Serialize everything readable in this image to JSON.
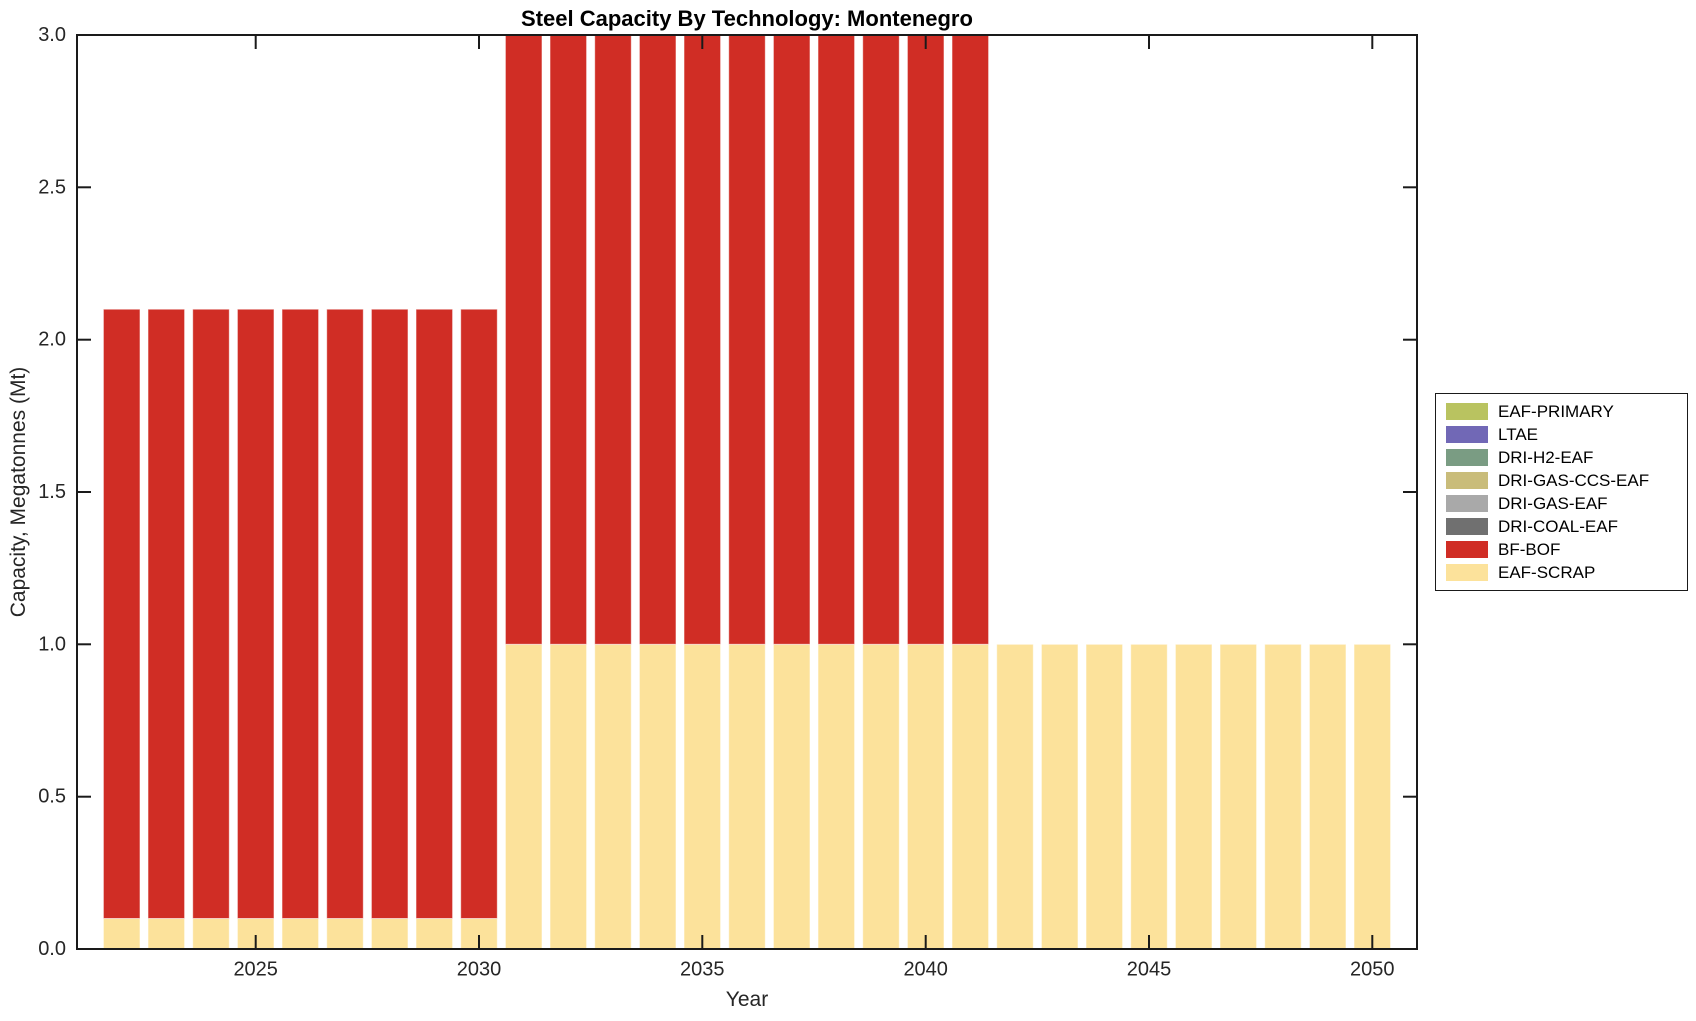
{
  "chart_data": {
    "type": "bar",
    "stacked": true,
    "title": "Steel Capacity By Technology: Montenegro",
    "xlabel": "Year",
    "ylabel": "Capacity, Megatonnes (Mt)",
    "x_range": [
      2021,
      2051
    ],
    "ylim": [
      0.0,
      3.0
    ],
    "x_ticks": [
      2025,
      2030,
      2035,
      2040,
      2045,
      2050
    ],
    "y_ticks": [
      0.0,
      0.5,
      1.0,
      1.5,
      2.0,
      2.5,
      3.0
    ],
    "grid": false,
    "legend_position": "outside-right",
    "bar_width_fraction": 0.82,
    "categories": [
      2022,
      2023,
      2024,
      2025,
      2026,
      2027,
      2028,
      2029,
      2030,
      2031,
      2032,
      2033,
      2034,
      2035,
      2036,
      2037,
      2038,
      2039,
      2040,
      2041,
      2042,
      2043,
      2044,
      2045,
      2046,
      2047,
      2048,
      2049,
      2050
    ],
    "series": [
      {
        "name": "EAF-SCRAP",
        "color": "#fce29b",
        "values": [
          0.1,
          0.1,
          0.1,
          0.1,
          0.1,
          0.1,
          0.1,
          0.1,
          0.1,
          1.0,
          1.0,
          1.0,
          1.0,
          1.0,
          1.0,
          1.0,
          1.0,
          1.0,
          1.0,
          1.0,
          1.0,
          1.0,
          1.0,
          1.0,
          1.0,
          1.0,
          1.0,
          1.0,
          1.0
        ]
      },
      {
        "name": "BF-BOF",
        "color": "#d02d25",
        "values": [
          2.0,
          2.0,
          2.0,
          2.0,
          2.0,
          2.0,
          2.0,
          2.0,
          2.0,
          2.0,
          2.0,
          2.0,
          2.0,
          2.0,
          2.0,
          2.0,
          2.0,
          2.0,
          2.0,
          2.0,
          0.0,
          0.0,
          0.0,
          0.0,
          0.0,
          0.0,
          0.0,
          0.0,
          0.0
        ]
      }
    ],
    "legend": [
      {
        "label": "EAF-PRIMARY",
        "color": "#b9c360"
      },
      {
        "label": "LTAE",
        "color": "#7168b6"
      },
      {
        "label": "DRI-H2-EAF",
        "color": "#7a9c83"
      },
      {
        "label": "DRI-GAS-CCS-EAF",
        "color": "#c9bc7a"
      },
      {
        "label": "DRI-GAS-EAF",
        "color": "#a9a9a9"
      },
      {
        "label": "DRI-COAL-EAF",
        "color": "#707070"
      },
      {
        "label": "BF-BOF",
        "color": "#d02d25"
      },
      {
        "label": "EAF-SCRAP",
        "color": "#fce29b"
      }
    ]
  },
  "axis": {
    "line_color": "#1a1a1a",
    "tick_label_color": "#262626",
    "background": "#ffffff"
  }
}
